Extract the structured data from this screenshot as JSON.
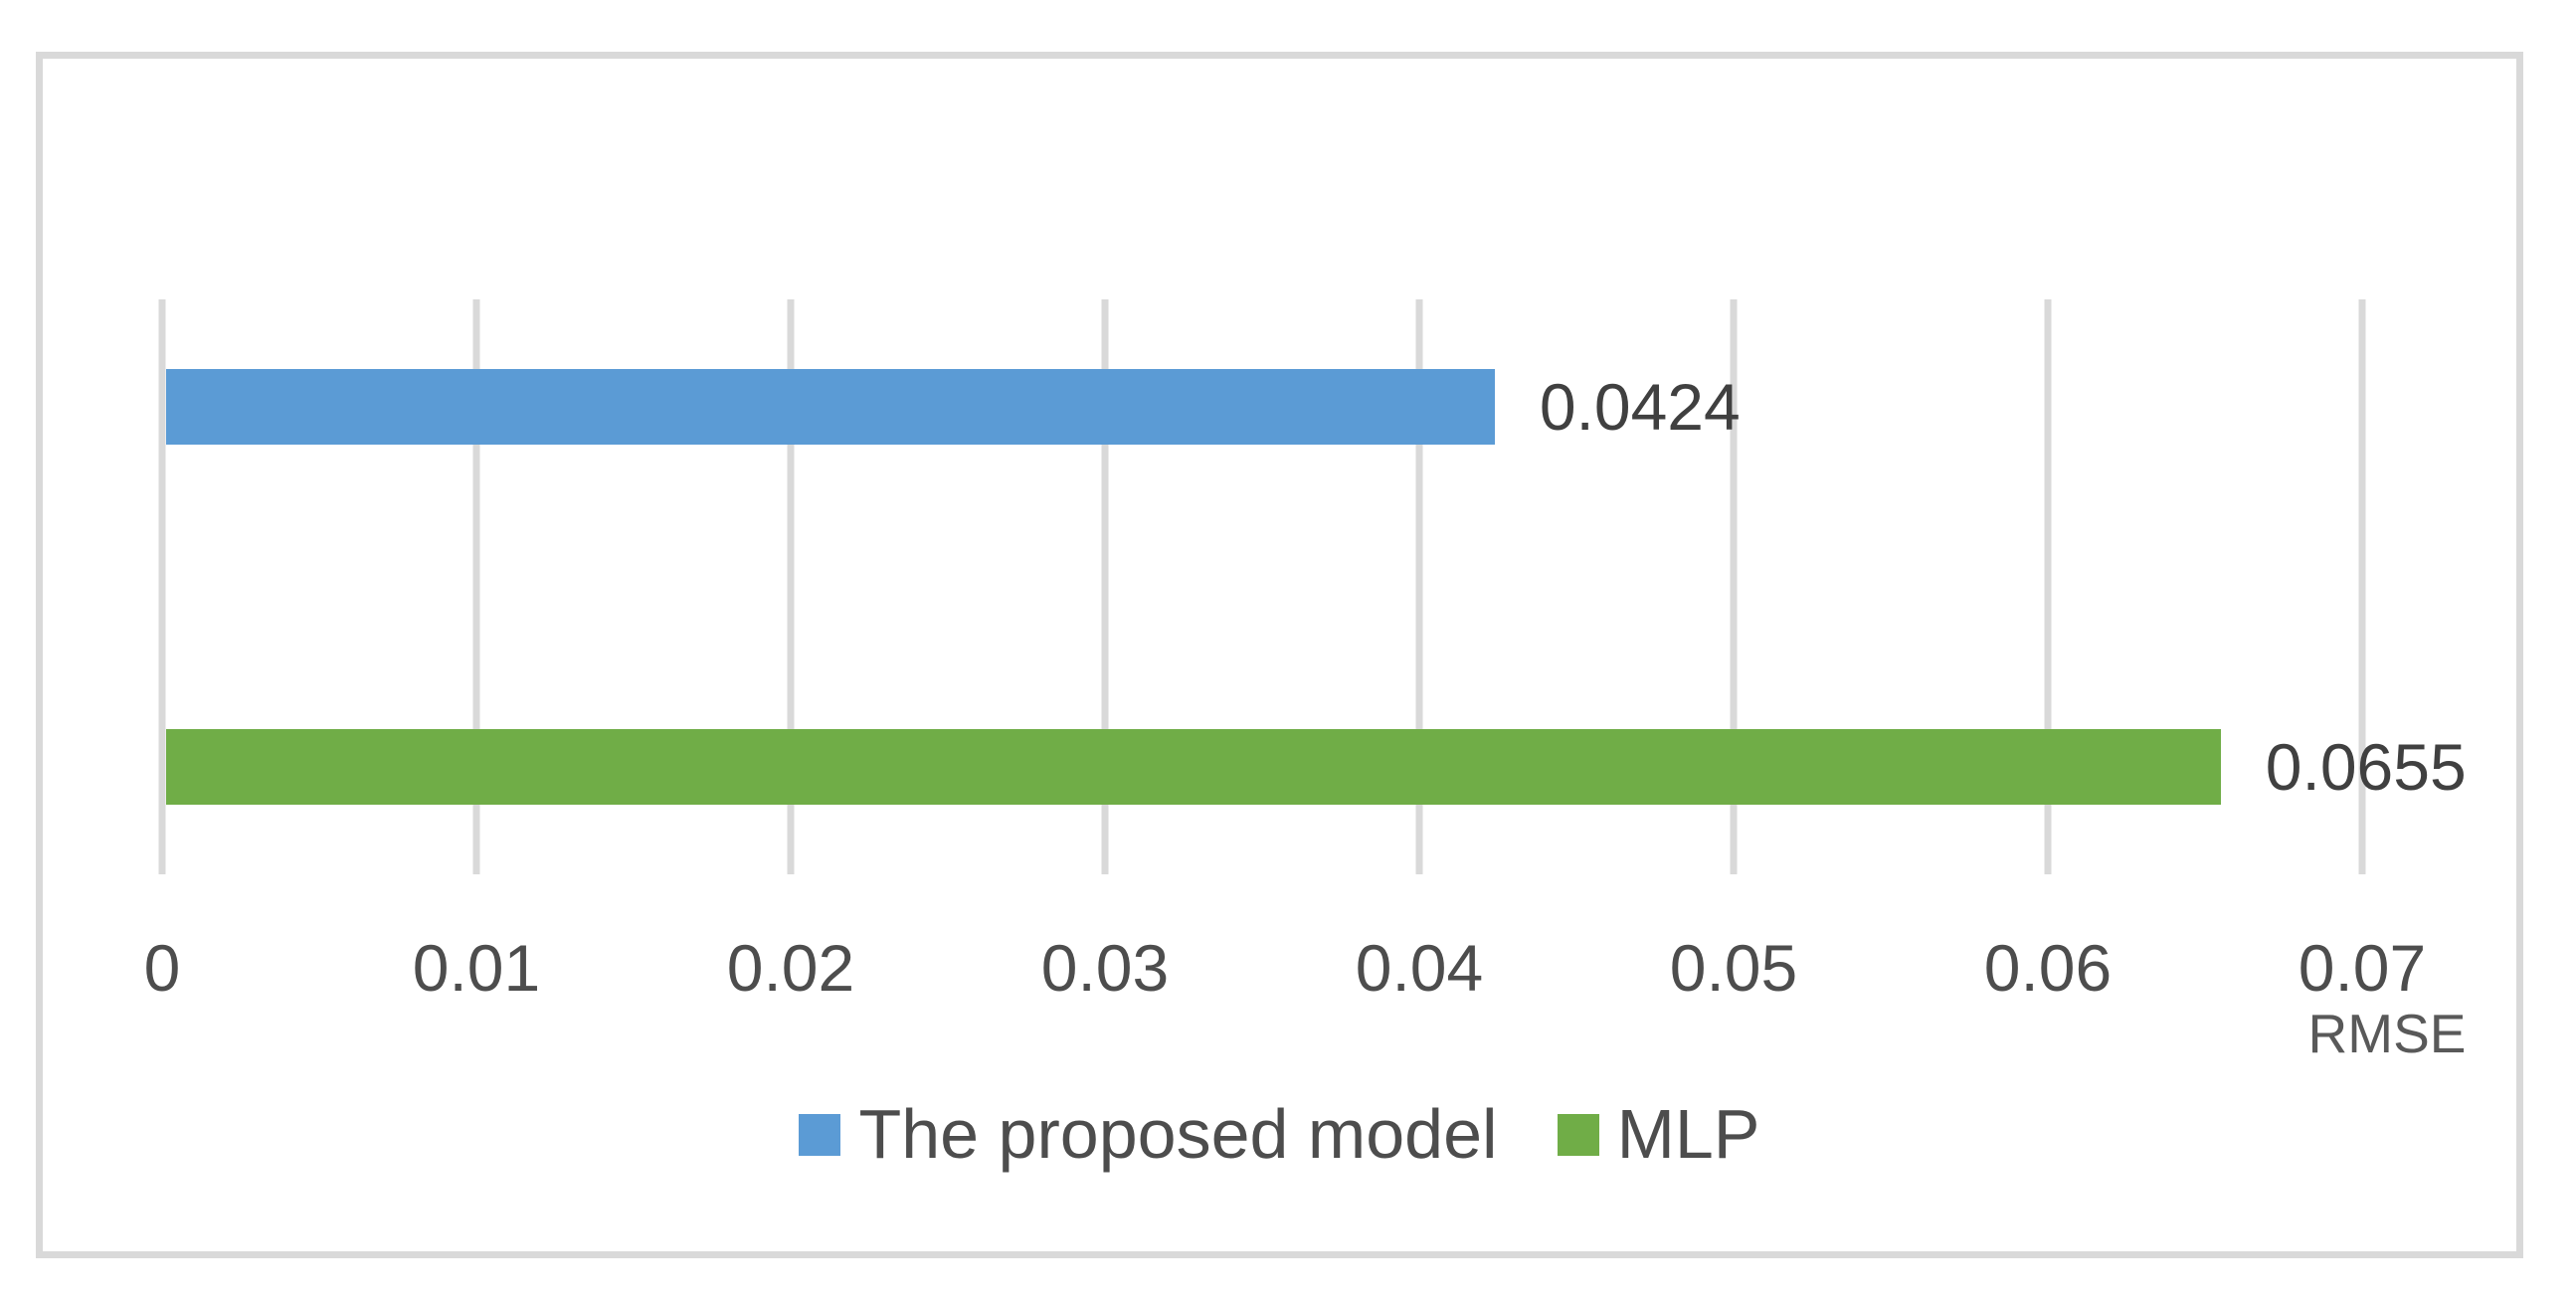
{
  "chart_data": {
    "type": "bar",
    "orientation": "horizontal",
    "title": "",
    "xlabel": "RMSE",
    "ylabel": "",
    "xlim": [
      0,
      0.07
    ],
    "grid": "vertical",
    "legend_position": "bottom-center",
    "series": [
      {
        "name": "The proposed model",
        "value": 0.0424,
        "label": "0.0424",
        "color": "#5B9BD5"
      },
      {
        "name": "MLP",
        "value": 0.0655,
        "label": "0.0655",
        "color": "#70AD47"
      }
    ],
    "x_ticks": [
      {
        "value": 0.0,
        "label": "0"
      },
      {
        "value": 0.01,
        "label": "0.01"
      },
      {
        "value": 0.02,
        "label": "0.02"
      },
      {
        "value": 0.03,
        "label": "0.03"
      },
      {
        "value": 0.04,
        "label": "0.04"
      },
      {
        "value": 0.05,
        "label": "0.05"
      },
      {
        "value": 0.06,
        "label": "0.06"
      },
      {
        "value": 0.07,
        "label": "0.07"
      }
    ],
    "legend": {
      "items": [
        {
          "label": "The proposed model",
          "color": "#5B9BD5"
        },
        {
          "label": "MLP",
          "color": "#70AD47"
        }
      ]
    },
    "colors": {
      "gridline": "#D9D9D9",
      "frame_border": "#D9D9D9",
      "axis_text": "#4d4d4d",
      "data_label_text": "#404040",
      "axis_title_text": "#595959",
      "legend_text": "#4d4d4d",
      "background": "#FFFFFF"
    }
  }
}
